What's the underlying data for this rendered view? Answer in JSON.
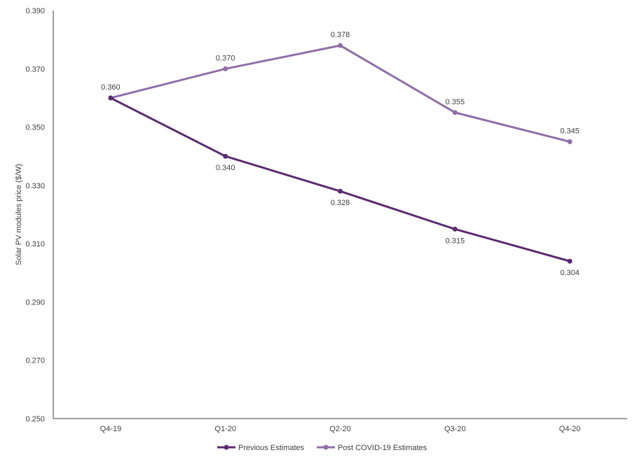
{
  "chart_data": {
    "type": "line",
    "categories": [
      "Q4-19",
      "Q1-20",
      "Q2-20",
      "Q3-20",
      "Q4-20"
    ],
    "ylabel": "Solar PV modules price ($/W)",
    "ylim": [
      0.25,
      0.39
    ],
    "yticks": [
      "0.250",
      "0.270",
      "0.290",
      "0.310",
      "0.330",
      "0.350",
      "0.370",
      "0.390"
    ],
    "grid": false,
    "legend_position": "bottom",
    "series": [
      {
        "name": "Previous Estimates",
        "color": "#5b2c6f",
        "values": [
          0.36,
          0.34,
          0.328,
          0.315,
          0.304
        ],
        "labels": [
          "0.360",
          "0.340",
          "0.328",
          "0.315",
          "0.304"
        ]
      },
      {
        "name": "Post COVID-19 Estimates",
        "color": "#8e6fa8",
        "values": [
          0.36,
          0.37,
          0.378,
          0.355,
          0.345
        ],
        "labels": [
          "0.360",
          "0.370",
          "0.378",
          "0.355",
          "0.345"
        ]
      }
    ]
  }
}
